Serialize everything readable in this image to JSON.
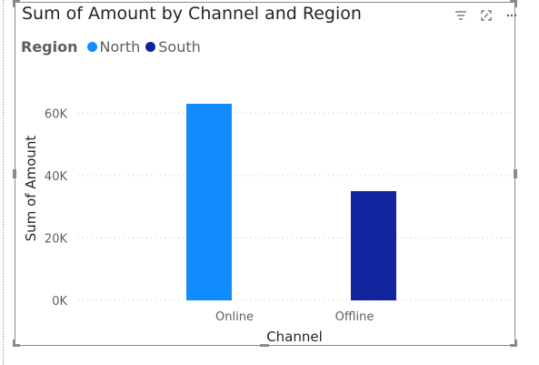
{
  "visual": {
    "title": "Sum of Amount by Channel and Region",
    "legend_title": "Region",
    "header_icons": [
      "filter-icon",
      "focus-mode-icon",
      "more-options-icon"
    ]
  },
  "colors": {
    "north": "#118dff",
    "south": "#12239e",
    "grid": "#c8c6c4",
    "axis_text": "#605e5c",
    "title_text": "#252423"
  },
  "chart_data": {
    "type": "bar",
    "title": "Sum of Amount by Channel and Region",
    "xlabel": "Channel",
    "ylabel": "Sum of Amount",
    "categories": [
      "Online",
      "Offline"
    ],
    "series": [
      {
        "name": "North",
        "values": [
          63000,
          null
        ]
      },
      {
        "name": "South",
        "values": [
          null,
          35000
        ]
      }
    ],
    "ylim": [
      0,
      70000
    ],
    "yticks": [
      0,
      20000,
      40000,
      60000
    ],
    "ytick_labels": [
      "0K",
      "20K",
      "40K",
      "60K"
    ],
    "grid": true,
    "legend_position": "top-left"
  }
}
